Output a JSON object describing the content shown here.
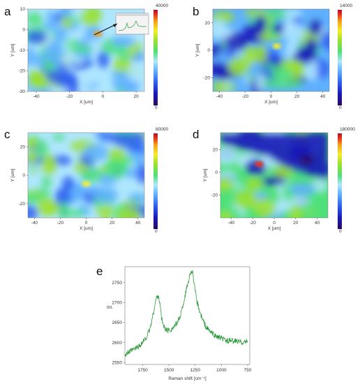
{
  "colors": {
    "colormap": [
      "#2a0a5e",
      "#1a1ab8",
      "#2f5ff0",
      "#5fb0ff",
      "#aee6ff",
      "#4fe07a",
      "#9be12b",
      "#f2ef2a",
      "#f4a11a",
      "#e8321c",
      "#b0102a"
    ],
    "spectrum_line": "#2e9a3e"
  },
  "chart_data": [
    {
      "panel": "a",
      "type": "heatmap",
      "xlabel": "X [um]",
      "ylabel": "Y [um]",
      "xticks": [
        -40,
        -20,
        0,
        20
      ],
      "yticks": [
        10,
        0,
        -10,
        -20,
        -30
      ],
      "xlim": [
        -45,
        25
      ],
      "ylim": [
        -30,
        10
      ],
      "colorbar": {
        "max": "40000",
        "min": "0"
      },
      "inset": "spectrum"
    },
    {
      "panel": "b",
      "type": "heatmap",
      "xlabel": "X [um]",
      "ylabel": "Y [um]",
      "xticks": [
        -40,
        -20,
        0,
        20,
        40
      ],
      "yticks": [
        20,
        0,
        -20
      ],
      "xlim": [
        -45,
        45
      ],
      "ylim": [
        -30,
        30
      ],
      "colorbar": {
        "max": "14000",
        "min": "0"
      }
    },
    {
      "panel": "c",
      "type": "heatmap",
      "xlabel": "X [um]",
      "ylabel": "Y [um]",
      "xticks": [
        -40,
        -20,
        0,
        20,
        40
      ],
      "yticks": [
        20,
        0,
        -20
      ],
      "xlim": [
        -45,
        45
      ],
      "ylim": [
        -30,
        30
      ],
      "colorbar": {
        "max": "80000",
        "min": "0"
      }
    },
    {
      "panel": "d",
      "type": "heatmap",
      "xlabel": "X [um]",
      "ylabel": "Y [um]",
      "xticks": [
        -40,
        -20,
        0,
        20,
        40
      ],
      "yticks": [
        20,
        0,
        -20
      ],
      "xlim": [
        -50,
        50
      ],
      "ylim": [
        -40,
        35
      ],
      "colorbar": {
        "max": "180000",
        "min": "0"
      }
    },
    {
      "panel": "e",
      "type": "line",
      "xlabel": "Raman shift [cm⁻¹]",
      "ylabel": "Int.",
      "xticks": [
        1750,
        1500,
        1250,
        1000,
        750
      ],
      "yticks": [
        2750,
        2700,
        2650,
        2600,
        2550
      ],
      "xlim": [
        1920,
        730
      ],
      "ylim": [
        2545,
        2790
      ],
      "x_reversed": true,
      "series": [
        {
          "x": [
            1920,
            1850,
            1780,
            1720,
            1680,
            1650,
            1620,
            1600,
            1585,
            1570,
            1550,
            1520,
            1480,
            1440,
            1400,
            1360,
            1330,
            1310,
            1290,
            1275,
            1260,
            1240,
            1200,
            1150,
            1100,
            1050,
            1000,
            950,
            900,
            850,
            800,
            750
          ],
          "y": [
            2570,
            2580,
            2592,
            2610,
            2635,
            2672,
            2712,
            2718,
            2695,
            2660,
            2640,
            2630,
            2632,
            2642,
            2660,
            2700,
            2738,
            2760,
            2780,
            2775,
            2745,
            2712,
            2670,
            2640,
            2625,
            2615,
            2610,
            2605,
            2604,
            2603,
            2601,
            2602
          ]
        }
      ]
    }
  ]
}
